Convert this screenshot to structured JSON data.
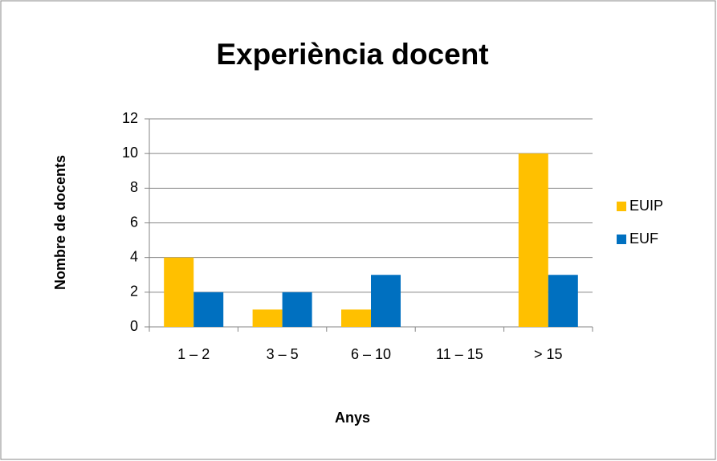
{
  "chart_data": {
    "type": "bar",
    "title": "Experiència docent",
    "x_label": "Anys",
    "y_label": "Nombre de docents",
    "categories": [
      "1 – 2",
      "3 – 5",
      "6 – 10",
      "11 – 15",
      "> 15"
    ],
    "series": [
      {
        "name": "EUIP",
        "color": "#ffc000",
        "values": [
          4,
          1,
          1,
          0,
          10
        ]
      },
      {
        "name": "EUF",
        "color": "#0070c0",
        "values": [
          2,
          2,
          3,
          0,
          3
        ]
      }
    ],
    "ylim": [
      0,
      12
    ],
    "yticks": [
      0,
      2,
      4,
      6,
      8,
      10,
      12
    ],
    "grid": true,
    "legend": "right"
  }
}
